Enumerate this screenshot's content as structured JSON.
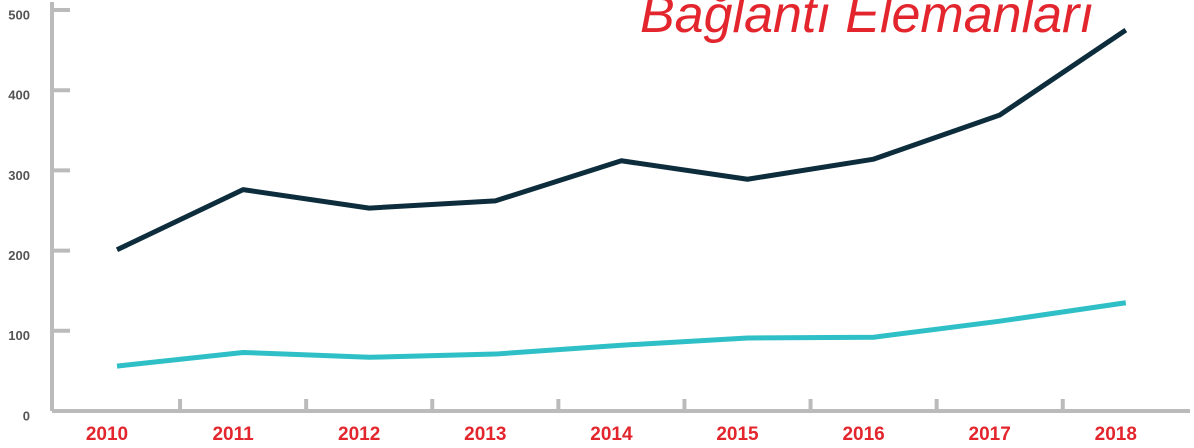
{
  "chart_data": {
    "type": "line",
    "title": "Bağlantı Elemanları",
    "categories": [
      "2010",
      "2011",
      "2012",
      "2013",
      "2014",
      "2015",
      "2016",
      "2017",
      "2018"
    ],
    "series": [
      {
        "color": "#0d2d3d",
        "values": [
          201,
          276,
          253,
          262,
          312,
          289,
          314,
          369,
          475
        ]
      },
      {
        "color": "#2fbfc6",
        "values": [
          56,
          73,
          67,
          71,
          82,
          91,
          92,
          112,
          135
        ]
      }
    ],
    "ylim": [
      0,
      500
    ],
    "yticks": [
      0,
      100,
      200,
      300,
      400,
      500
    ]
  }
}
